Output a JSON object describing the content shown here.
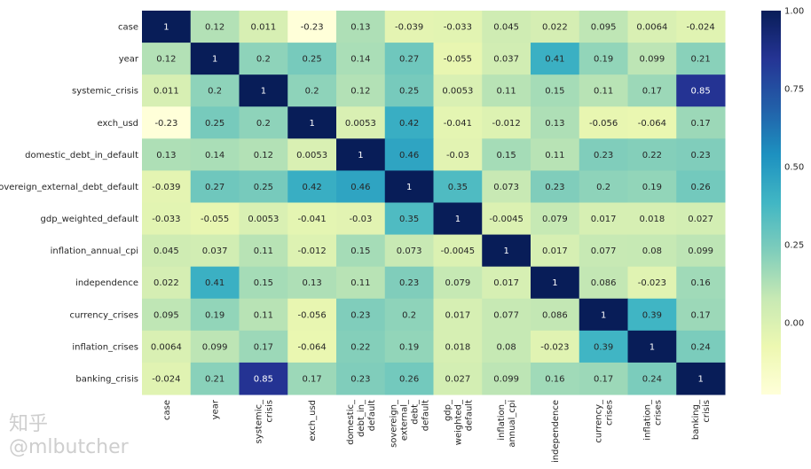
{
  "chart_data": {
    "type": "heatmap",
    "labels": [
      "case",
      "year",
      "systemic_crisis",
      "exch_usd",
      "domestic_debt_in_default",
      "sovereign_external_debt_default",
      "gdp_weighted_default",
      "inflation_annual_cpi",
      "independence",
      "currency_crises",
      "inflation_crises",
      "banking_crisis"
    ],
    "values": [
      [
        "1",
        "0.12",
        "0.011",
        "-0.23",
        "0.13",
        "-0.039",
        "-0.033",
        "0.045",
        "0.022",
        "0.095",
        "0.0064",
        "-0.024"
      ],
      [
        "0.12",
        "1",
        "0.2",
        "0.25",
        "0.14",
        "0.27",
        "-0.055",
        "0.037",
        "0.41",
        "0.19",
        "0.099",
        "0.21"
      ],
      [
        "0.011",
        "0.2",
        "1",
        "0.2",
        "0.12",
        "0.25",
        "0.0053",
        "0.11",
        "0.15",
        "0.11",
        "0.17",
        "0.85"
      ],
      [
        "-0.23",
        "0.25",
        "0.2",
        "1",
        "0.0053",
        "0.42",
        "-0.041",
        "-0.012",
        "0.13",
        "-0.056",
        "-0.064",
        "0.17"
      ],
      [
        "0.13",
        "0.14",
        "0.12",
        "0.0053",
        "1",
        "0.46",
        "-0.03",
        "0.15",
        "0.11",
        "0.23",
        "0.22",
        "0.23"
      ],
      [
        "-0.039",
        "0.27",
        "0.25",
        "0.42",
        "0.46",
        "1",
        "0.35",
        "0.073",
        "0.23",
        "0.2",
        "0.19",
        "0.26"
      ],
      [
        "-0.033",
        "-0.055",
        "0.0053",
        "-0.041",
        "-0.03",
        "0.35",
        "1",
        "-0.0045",
        "0.079",
        "0.017",
        "0.018",
        "0.027"
      ],
      [
        "0.045",
        "0.037",
        "0.11",
        "-0.012",
        "0.15",
        "0.073",
        "-0.0045",
        "1",
        "0.017",
        "0.077",
        "0.08",
        "0.099"
      ],
      [
        "0.022",
        "0.41",
        "0.15",
        "0.13",
        "0.11",
        "0.23",
        "0.079",
        "0.017",
        "1",
        "0.086",
        "-0.023",
        "0.16"
      ],
      [
        "0.095",
        "0.19",
        "0.11",
        "-0.056",
        "0.23",
        "0.2",
        "0.017",
        "0.077",
        "0.086",
        "1",
        "0.39",
        "0.17"
      ],
      [
        "0.0064",
        "0.099",
        "0.17",
        "-0.064",
        "0.22",
        "0.19",
        "0.018",
        "0.08",
        "-0.023",
        "0.39",
        "1",
        "0.24"
      ],
      [
        "-0.024",
        "0.21",
        "0.85",
        "0.17",
        "0.23",
        "0.26",
        "0.027",
        "0.099",
        "0.16",
        "0.17",
        "0.24",
        "1"
      ]
    ],
    "colormap": "YlGnBu",
    "colormap_stops": [
      "#ffffd9",
      "#edf8b1",
      "#c7e9b4",
      "#7fcdbb",
      "#41b6c4",
      "#1d91c0",
      "#225ea8",
      "#253494",
      "#081d58"
    ],
    "vmin": -0.23,
    "vmax": 1.0,
    "colorbar_ticks": [
      "0.00",
      "0.25",
      "0.50",
      "0.75",
      "1.00"
    ],
    "annotated": true
  },
  "watermark": "知乎 @mlbutcher"
}
